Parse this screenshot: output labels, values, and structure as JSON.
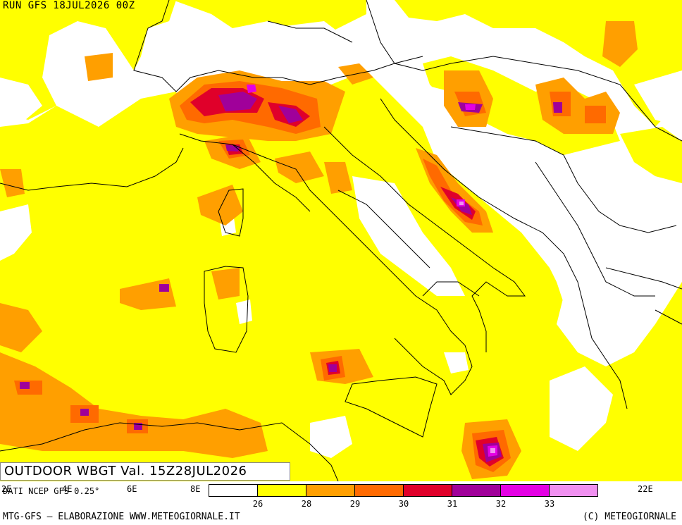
{
  "header": {
    "run": "RUN GFS 18JUL2026 00Z"
  },
  "product": {
    "title": "OUTDOOR WBGT Val. 15Z28JUL2026"
  },
  "source": "DATI NCEP GFS 0.25°",
  "lon_labels": [
    "2E",
    "4E",
    "6E",
    "8E",
    "22E"
  ],
  "legend": {
    "colors": [
      "#ffffff",
      "#ffff00",
      "#ff9f00",
      "#ff6a00",
      "#e0002a",
      "#a0009a",
      "#e400e4",
      "#f090f0"
    ],
    "ticks": [
      "26",
      "28",
      "29",
      "30",
      "31",
      "32",
      "33"
    ]
  },
  "footer": {
    "left": "MTG-GFS – ELABORAZIONE WWW.METEOGIORNALE.IT",
    "right": "(C) METEOGIORNALE"
  },
  "map_colors": {
    "background": "#ffffff",
    "level_26": "#ffff00",
    "level_28": "#ff9f00",
    "level_29": "#ff6a00",
    "level_30": "#e0002a",
    "level_31": "#a0009a",
    "level_32": "#e400e4",
    "level_33": "#f090f0",
    "borders": "#000000"
  }
}
